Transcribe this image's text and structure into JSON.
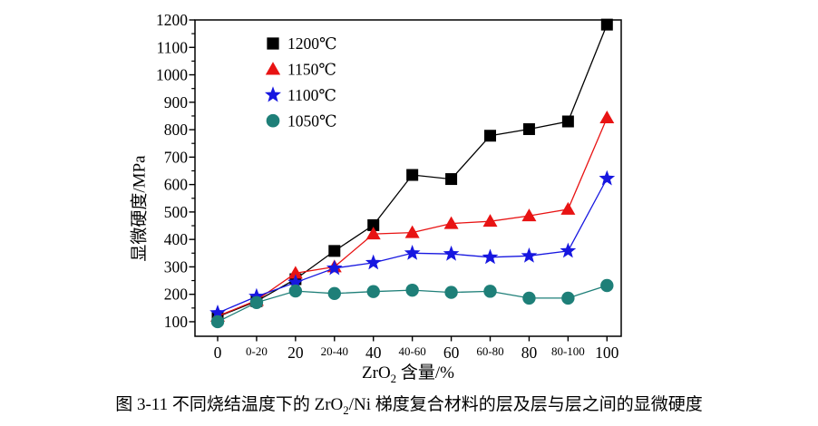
{
  "figure": {
    "ylabel": "显微硬度/MPa",
    "xlabel": {
      "pre": "ZrO",
      "sub": "2",
      "post": " 含量/%"
    },
    "caption": {
      "pre": "图 3-11  不同烧结温度下的 ZrO",
      "sub": "2",
      "post": "/Ni 梯度复合材料的层及层与层之间的显微硬度"
    }
  },
  "chart_data": {
    "type": "line",
    "title": "",
    "xlabel": "ZrO2 含量/%",
    "ylabel": "显微硬度/MPa",
    "categories": [
      "0",
      "0-20",
      "20",
      "20-40",
      "40",
      "40-60",
      "60",
      "60-80",
      "80",
      "80-100",
      "100"
    ],
    "x_major_label_indices": [
      0,
      2,
      4,
      6,
      8,
      10
    ],
    "series": [
      {
        "name": "1200℃",
        "id": "1200c",
        "color": "#000000",
        "marker": "square",
        "values": [
          118,
          175,
          255,
          358,
          452,
          635,
          620,
          778,
          802,
          830,
          1183
        ]
      },
      {
        "name": "1150℃",
        "id": "1150c",
        "color": "#e81313",
        "marker": "triangle",
        "values": [
          120,
          178,
          277,
          300,
          420,
          425,
          458,
          466,
          486,
          510,
          843
        ]
      },
      {
        "name": "1100℃",
        "id": "1100c",
        "color": "#1717e0",
        "marker": "star",
        "values": [
          132,
          192,
          243,
          295,
          315,
          350,
          347,
          335,
          340,
          358,
          622
        ]
      },
      {
        "name": "1050℃",
        "id": "1050c",
        "color": "#1e7f78",
        "marker": "circle",
        "values": [
          100,
          170,
          212,
          203,
          210,
          215,
          207,
          211,
          186,
          186,
          232
        ]
      }
    ],
    "yticks": [
      100,
      200,
      300,
      400,
      500,
      600,
      700,
      800,
      900,
      1000,
      1100,
      1200
    ],
    "ylim": [
      47,
      1200
    ],
    "grid": false,
    "legend_position": "top-left-inside",
    "axis_color": "#000000"
  }
}
